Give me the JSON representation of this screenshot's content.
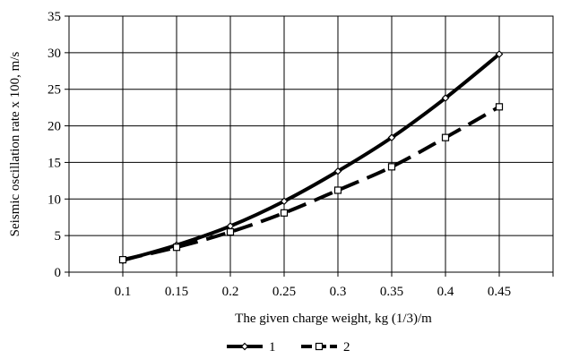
{
  "chart_data": {
    "type": "line",
    "xlabel": "The given charge weight, kg (1/3)/m",
    "ylabel": "Seismic oscillation rate x 100, m/s",
    "x_ticks": [
      "0.1",
      "0.15",
      "0.2",
      "0.25",
      "0.3",
      "0.35",
      "0.4",
      "0.45"
    ],
    "x": [
      0.1,
      0.15,
      0.2,
      0.25,
      0.3,
      0.35,
      0.4,
      0.45
    ],
    "xlim": [
      0.05,
      0.5
    ],
    "ylim": [
      0,
      35
    ],
    "y_ticks": [
      0,
      5,
      10,
      15,
      20,
      25,
      30,
      35
    ],
    "grid": true,
    "legend_position": "bottom-center",
    "series": [
      {
        "name": "1",
        "values": [
          1.6,
          3.7,
          6.3,
          9.7,
          13.8,
          18.4,
          23.8,
          29.8
        ],
        "marker": "diamond",
        "line_style": "solid",
        "color": "#000000"
      },
      {
        "name": "2",
        "values": [
          1.7,
          3.4,
          5.5,
          8.1,
          11.2,
          14.4,
          18.4,
          22.6
        ],
        "marker": "square",
        "line_style": "dashed",
        "color": "#000000"
      }
    ]
  }
}
